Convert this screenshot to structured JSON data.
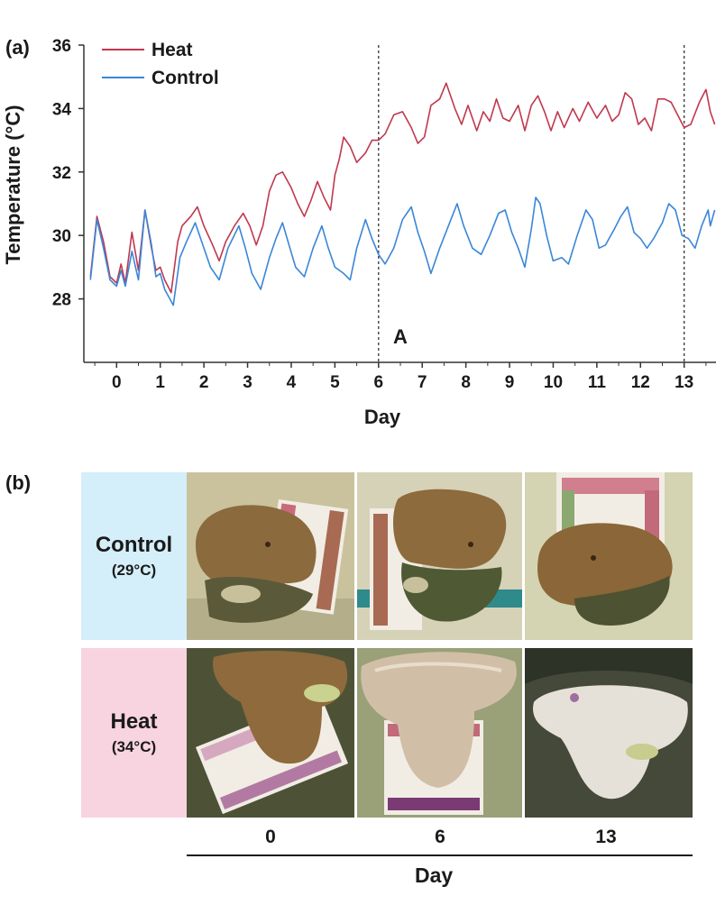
{
  "panel_a_label": "(a)",
  "panel_b_label": "(b)",
  "chart_data": {
    "type": "line",
    "xlabel": "Day",
    "ylabel": "Temperature (°C)",
    "xlim": [
      -0.75,
      13.75
    ],
    "ylim": [
      26,
      36
    ],
    "x_ticks": [
      0,
      1,
      2,
      3,
      4,
      5,
      6,
      7,
      8,
      9,
      10,
      11,
      12,
      13
    ],
    "y_ticks": [
      28,
      30,
      32,
      34,
      36
    ],
    "legend_position": "top-left",
    "grid": false,
    "annotations": [
      {
        "type": "vline",
        "x": 6,
        "style": "dotted"
      },
      {
        "type": "vline",
        "x": 13,
        "style": "dotted"
      },
      {
        "type": "text",
        "text": "A",
        "x": 6.5,
        "y": 26.6
      }
    ],
    "series": [
      {
        "name": "Heat",
        "color": "#c0384e",
        "points": [
          [
            -0.6,
            28.7
          ],
          [
            -0.45,
            30.6
          ],
          [
            -0.3,
            29.8
          ],
          [
            -0.15,
            28.7
          ],
          [
            0,
            28.5
          ],
          [
            0.1,
            29.1
          ],
          [
            0.2,
            28.5
          ],
          [
            0.35,
            30.1
          ],
          [
            0.5,
            28.9
          ],
          [
            0.65,
            30.8
          ],
          [
            0.8,
            29.6
          ],
          [
            0.9,
            28.9
          ],
          [
            1.0,
            29.0
          ],
          [
            1.1,
            28.6
          ],
          [
            1.25,
            28.2
          ],
          [
            1.4,
            29.8
          ],
          [
            1.5,
            30.3
          ],
          [
            1.7,
            30.6
          ],
          [
            1.85,
            30.9
          ],
          [
            2.0,
            30.3
          ],
          [
            2.2,
            29.7
          ],
          [
            2.35,
            29.2
          ],
          [
            2.5,
            29.8
          ],
          [
            2.7,
            30.3
          ],
          [
            2.9,
            30.7
          ],
          [
            3.05,
            30.3
          ],
          [
            3.2,
            29.7
          ],
          [
            3.35,
            30.3
          ],
          [
            3.5,
            31.4
          ],
          [
            3.65,
            31.9
          ],
          [
            3.8,
            32.0
          ],
          [
            4.0,
            31.5
          ],
          [
            4.15,
            31.0
          ],
          [
            4.3,
            30.6
          ],
          [
            4.45,
            31.1
          ],
          [
            4.6,
            31.7
          ],
          [
            4.75,
            31.2
          ],
          [
            4.9,
            30.8
          ],
          [
            5.0,
            31.9
          ],
          [
            5.1,
            32.4
          ],
          [
            5.2,
            33.1
          ],
          [
            5.35,
            32.8
          ],
          [
            5.5,
            32.3
          ],
          [
            5.7,
            32.6
          ],
          [
            5.85,
            33.0
          ],
          [
            6.0,
            33.0
          ],
          [
            6.15,
            33.2
          ],
          [
            6.35,
            33.8
          ],
          [
            6.55,
            33.9
          ],
          [
            6.75,
            33.4
          ],
          [
            6.9,
            32.9
          ],
          [
            7.05,
            33.1
          ],
          [
            7.2,
            34.1
          ],
          [
            7.4,
            34.3
          ],
          [
            7.55,
            34.8
          ],
          [
            7.75,
            34.0
          ],
          [
            7.9,
            33.5
          ],
          [
            8.05,
            34.1
          ],
          [
            8.25,
            33.3
          ],
          [
            8.4,
            33.9
          ],
          [
            8.55,
            33.6
          ],
          [
            8.7,
            34.3
          ],
          [
            8.85,
            33.7
          ],
          [
            9.0,
            33.6
          ],
          [
            9.2,
            34.1
          ],
          [
            9.35,
            33.3
          ],
          [
            9.5,
            34.1
          ],
          [
            9.65,
            34.4
          ],
          [
            9.8,
            33.9
          ],
          [
            9.95,
            33.3
          ],
          [
            10.1,
            33.9
          ],
          [
            10.25,
            33.4
          ],
          [
            10.45,
            34.0
          ],
          [
            10.6,
            33.6
          ],
          [
            10.8,
            34.2
          ],
          [
            11.0,
            33.7
          ],
          [
            11.2,
            34.1
          ],
          [
            11.35,
            33.6
          ],
          [
            11.5,
            33.8
          ],
          [
            11.65,
            34.5
          ],
          [
            11.8,
            34.3
          ],
          [
            11.95,
            33.5
          ],
          [
            12.1,
            33.7
          ],
          [
            12.25,
            33.3
          ],
          [
            12.4,
            34.3
          ],
          [
            12.55,
            34.3
          ],
          [
            12.7,
            34.2
          ],
          [
            12.85,
            33.8
          ],
          [
            13.0,
            33.4
          ],
          [
            13.15,
            33.5
          ],
          [
            13.35,
            34.2
          ],
          [
            13.5,
            34.6
          ],
          [
            13.6,
            33.9
          ],
          [
            13.7,
            33.5
          ]
        ]
      },
      {
        "name": "Control",
        "color": "#3a86d8",
        "points": [
          [
            -0.6,
            28.6
          ],
          [
            -0.45,
            30.5
          ],
          [
            -0.3,
            29.6
          ],
          [
            -0.15,
            28.6
          ],
          [
            0,
            28.4
          ],
          [
            0.1,
            28.9
          ],
          [
            0.2,
            28.4
          ],
          [
            0.35,
            29.5
          ],
          [
            0.5,
            28.6
          ],
          [
            0.65,
            30.8
          ],
          [
            0.8,
            29.7
          ],
          [
            0.9,
            28.7
          ],
          [
            1.0,
            28.8
          ],
          [
            1.1,
            28.3
          ],
          [
            1.3,
            27.8
          ],
          [
            1.45,
            29.3
          ],
          [
            1.6,
            29.8
          ],
          [
            1.8,
            30.4
          ],
          [
            2.0,
            29.6
          ],
          [
            2.15,
            29.0
          ],
          [
            2.35,
            28.6
          ],
          [
            2.55,
            29.6
          ],
          [
            2.8,
            30.3
          ],
          [
            2.95,
            29.6
          ],
          [
            3.1,
            28.8
          ],
          [
            3.3,
            28.3
          ],
          [
            3.5,
            29.3
          ],
          [
            3.65,
            29.9
          ],
          [
            3.8,
            30.4
          ],
          [
            3.95,
            29.7
          ],
          [
            4.1,
            29.0
          ],
          [
            4.3,
            28.7
          ],
          [
            4.5,
            29.6
          ],
          [
            4.7,
            30.3
          ],
          [
            4.85,
            29.6
          ],
          [
            5.0,
            29.0
          ],
          [
            5.2,
            28.8
          ],
          [
            5.35,
            28.6
          ],
          [
            5.5,
            29.6
          ],
          [
            5.7,
            30.5
          ],
          [
            5.85,
            29.9
          ],
          [
            6.0,
            29.4
          ],
          [
            6.15,
            29.1
          ],
          [
            6.35,
            29.6
          ],
          [
            6.55,
            30.5
          ],
          [
            6.75,
            30.9
          ],
          [
            6.9,
            30.1
          ],
          [
            7.05,
            29.5
          ],
          [
            7.2,
            28.8
          ],
          [
            7.4,
            29.6
          ],
          [
            7.6,
            30.3
          ],
          [
            7.8,
            31.0
          ],
          [
            7.95,
            30.3
          ],
          [
            8.15,
            29.6
          ],
          [
            8.35,
            29.4
          ],
          [
            8.55,
            30.0
          ],
          [
            8.75,
            30.7
          ],
          [
            8.9,
            30.8
          ],
          [
            9.05,
            30.1
          ],
          [
            9.2,
            29.6
          ],
          [
            9.35,
            29.0
          ],
          [
            9.5,
            30.2
          ],
          [
            9.6,
            31.2
          ],
          [
            9.7,
            31.0
          ],
          [
            9.85,
            30.0
          ],
          [
            10.0,
            29.2
          ],
          [
            10.2,
            29.3
          ],
          [
            10.35,
            29.1
          ],
          [
            10.55,
            30.0
          ],
          [
            10.75,
            30.8
          ],
          [
            10.9,
            30.5
          ],
          [
            11.05,
            29.6
          ],
          [
            11.2,
            29.7
          ],
          [
            11.4,
            30.2
          ],
          [
            11.55,
            30.6
          ],
          [
            11.7,
            30.9
          ],
          [
            11.85,
            30.1
          ],
          [
            12.0,
            29.9
          ],
          [
            12.15,
            29.6
          ],
          [
            12.3,
            29.9
          ],
          [
            12.5,
            30.4
          ],
          [
            12.65,
            31.0
          ],
          [
            12.8,
            30.8
          ],
          [
            12.95,
            30.0
          ],
          [
            13.1,
            29.9
          ],
          [
            13.25,
            29.6
          ],
          [
            13.4,
            30.3
          ],
          [
            13.55,
            30.8
          ],
          [
            13.6,
            30.3
          ],
          [
            13.7,
            30.8
          ]
        ]
      }
    ]
  },
  "panel_b": {
    "rows": [
      {
        "title": "Control",
        "sub": "(29°C)",
        "bg": "#d4eefa"
      },
      {
        "title": "Heat",
        "sub": "(34°C)",
        "bg": "#f8d3e0"
      }
    ],
    "days": [
      "0",
      "6",
      "13"
    ],
    "xlabel": "Day"
  }
}
